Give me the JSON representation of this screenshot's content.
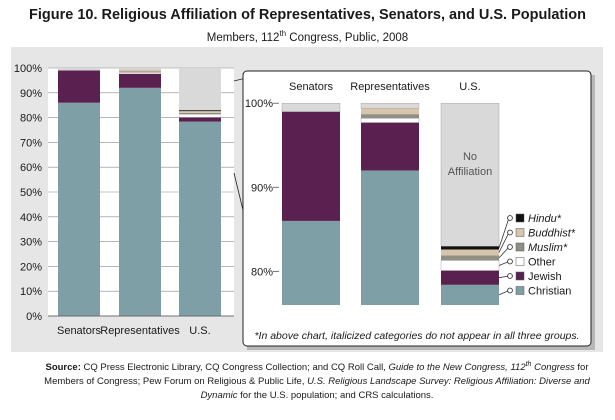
{
  "figure": {
    "title": "Figure 10. Religious Affiliation of Representatives, Senators, and U.S. Population",
    "subtitle_pre": "Members, 112",
    "subtitle_sup": "th",
    "subtitle_post": " Congress, Public, 2008"
  },
  "source": {
    "label": "Source:",
    "t1": " CQ Press Electronic Library, CQ Congress Collection; and CQ Roll Call, ",
    "t2": "Guide to the New Congress, 112",
    "t2sup": "th",
    "t3": " Congress",
    "t4": " for Members of Congress; Pew Forum on Religious & Public Life, ",
    "t5": "U.S. Religious Landscape Survey: Religious Affiliation: Diverse and Dynamic",
    "t6": " for the U.S. population; and CRS calculations."
  },
  "colors": {
    "christian": "#7f9fa6",
    "jewish": "#5a2150",
    "other": "#ffffff",
    "muslim": "#8f8f84",
    "buddhist": "#d7c5ad",
    "hindu": "#111111",
    "no_affiliation": "#d9d9d9",
    "panel_bg": "#e6e6e6"
  },
  "chart_data": [
    {
      "type": "bar",
      "stacked": true,
      "categories": [
        "Senators",
        "Representatives",
        "U.S."
      ],
      "ylim": [
        0,
        100
      ],
      "yticks": [
        "0%",
        "10%",
        "20%",
        "30%",
        "40%",
        "50%",
        "60%",
        "70%",
        "80%",
        "90%",
        "100%"
      ],
      "series": [
        {
          "key": "christian",
          "values": [
            86,
            92,
            78.4
          ]
        },
        {
          "key": "jewish",
          "values": [
            13,
            5.7,
            1.7
          ]
        },
        {
          "key": "other",
          "values": [
            0,
            0.5,
            1.2
          ]
        },
        {
          "key": "muslim",
          "values": [
            0,
            0.5,
            0.6
          ]
        },
        {
          "key": "buddhist",
          "values": [
            0,
            0.7,
            0.7
          ]
        },
        {
          "key": "hindu",
          "values": [
            0,
            0,
            0.4
          ]
        },
        {
          "key": "no_affiliation",
          "values": [
            1,
            0.6,
            17
          ]
        }
      ]
    },
    {
      "type": "bar",
      "stacked": true,
      "zoomed": true,
      "categories": [
        "Senators",
        "Representatives",
        "U.S."
      ],
      "ylim": [
        76,
        100.5
      ],
      "yticks": [
        "80%",
        "90%",
        "100%"
      ],
      "no_affiliation_label": "No\nAffiliation",
      "legend": [
        {
          "key": "hindu",
          "label": "Hindu*",
          "italic": true
        },
        {
          "key": "buddhist",
          "label": "Buddhist*",
          "italic": true
        },
        {
          "key": "muslim",
          "label": "Muslim*",
          "italic": true
        },
        {
          "key": "other",
          "label": "Other",
          "italic": false
        },
        {
          "key": "jewish",
          "label": "Jewish",
          "italic": false
        },
        {
          "key": "christian",
          "label": "Christian",
          "italic": false
        }
      ],
      "note": "*In above chart, italicized categories do not appear in all three groups."
    }
  ]
}
